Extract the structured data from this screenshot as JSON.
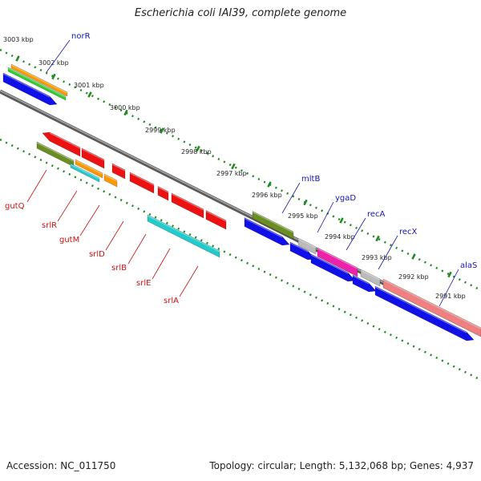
{
  "title": "Escherichia coli IAI39, complete genome",
  "footer": {
    "accession": "Accession: NC_011750",
    "summary": "Topology: circular; Length: 5,132,068 bp; Genes: 4,937"
  },
  "colors": {
    "backbone": "#777777",
    "tick": "#1f8a1f",
    "label_forward": "#1515b5",
    "label_reverse": "#cc1111",
    "blue": "#1010e8",
    "red": "#ee1111",
    "olive": "#6b8e23",
    "orange": "#ff9900",
    "green": "#33cc33",
    "cyan": "#22cccc",
    "magenta": "#ee22aa",
    "grey": "#bbbbbb",
    "salmon": "#f08080"
  },
  "kbp_marks": [
    {
      "label": "3003 kbp"
    },
    {
      "label": "3002 kbp"
    },
    {
      "label": "3001 kbp"
    },
    {
      "label": "3000 kbp"
    },
    {
      "label": "2999 kbp"
    },
    {
      "label": "2998 kbp"
    },
    {
      "label": "2997 kbp"
    },
    {
      "label": "2996 kbp"
    },
    {
      "label": "2995 kbp"
    },
    {
      "label": "2994 kbp"
    },
    {
      "label": "2993 kbp"
    },
    {
      "label": "2992 kbp"
    },
    {
      "label": "2991 kbp"
    }
  ],
  "genes_forward": [
    {
      "name": "norR"
    },
    {
      "name": "mltB"
    },
    {
      "name": "ygaD"
    },
    {
      "name": "recA"
    },
    {
      "name": "recX"
    },
    {
      "name": "alaS"
    }
  ],
  "genes_reverse": [
    {
      "name": "gutQ"
    },
    {
      "name": "srlR"
    },
    {
      "name": "gutM"
    },
    {
      "name": "srlD"
    },
    {
      "name": "srlB"
    },
    {
      "name": "srlE"
    },
    {
      "name": "srlA"
    }
  ]
}
